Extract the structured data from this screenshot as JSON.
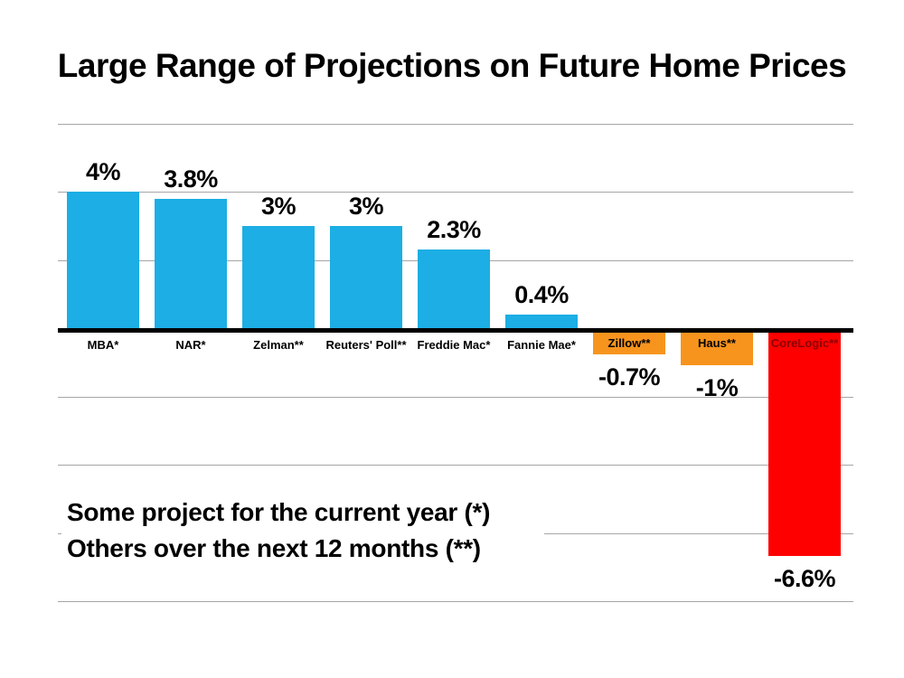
{
  "page": {
    "background_color": "#FFFFFF"
  },
  "chart_data": {
    "type": "bar",
    "title": "Large Range of Projections on Future Home Prices",
    "categories": [
      "MBA*",
      "NAR*",
      "Zelman**",
      "Reuters' Poll**",
      "Freddie Mac*",
      "Fannie Mae*",
      "Zillow**",
      "Haus**",
      "CoreLogic**"
    ],
    "values": [
      4,
      3.8,
      3,
      3,
      2.3,
      0.4,
      -0.7,
      -1,
      -6.6
    ],
    "value_labels": [
      "4%",
      "3.8%",
      "3%",
      "3%",
      "2.3%",
      "0.4%",
      "-0.7%",
      "-1%",
      "-6.6%"
    ],
    "bar_colors": [
      "#1CAEE4",
      "#1CAEE4",
      "#1CAEE4",
      "#1CAEE4",
      "#1CAEE4",
      "#1CAEE4",
      "#F7941E",
      "#F7941E",
      "#FE0000"
    ],
    "category_label_placement": [
      "below-axis",
      "below-axis",
      "below-axis",
      "below-axis",
      "below-axis",
      "below-axis",
      "inside-bar",
      "inside-bar",
      "inside-bar"
    ],
    "category_label_colors": [
      "#000000",
      "#000000",
      "#000000",
      "#000000",
      "#000000",
      "#000000",
      "#000000",
      "#000000",
      "#8B0000"
    ],
    "xlabel": "",
    "ylabel": "",
    "ylim": [
      -8,
      6
    ],
    "gridline_values": [
      6,
      4,
      2,
      -2,
      -4,
      -6,
      -8
    ],
    "gridline_color": "#A6A6A6",
    "axis_color": "#000000",
    "grid": true,
    "legend": false,
    "annotation_lines": [
      "Some project for the current year (*)",
      "Others over the next 12 months (**)"
    ]
  }
}
